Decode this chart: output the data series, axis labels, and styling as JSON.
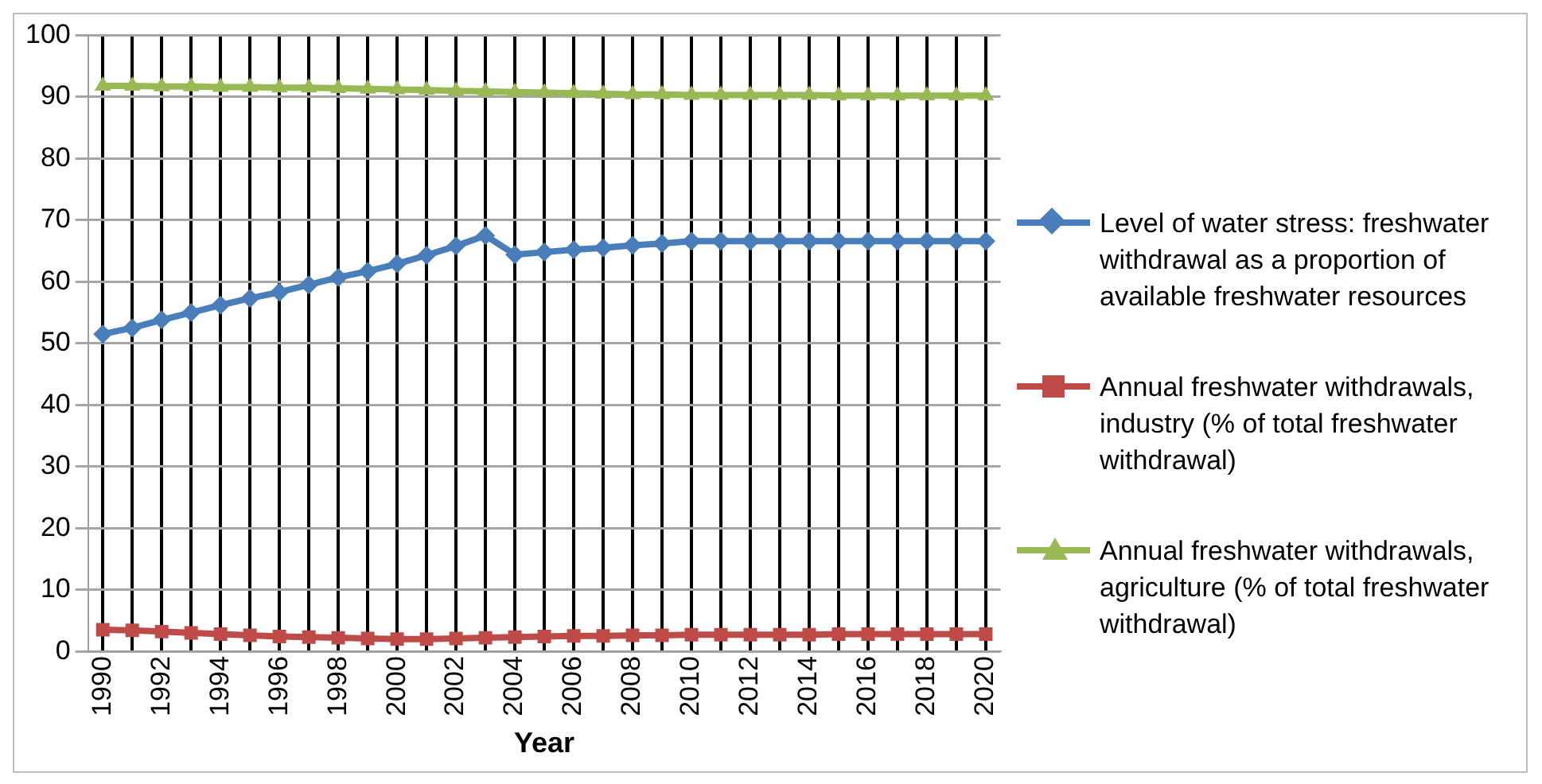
{
  "chart_data": {
    "type": "line",
    "xlabel": "Year",
    "categories": [
      "1990",
      null,
      "1992",
      null,
      "1994",
      null,
      "1996",
      null,
      "1998",
      null,
      "2000",
      null,
      "2002",
      null,
      "2004",
      null,
      "2006",
      null,
      "2008",
      null,
      "2010",
      null,
      "2012",
      null,
      "2014",
      null,
      "2016",
      null,
      "2018",
      null,
      "2020"
    ],
    "ylim": [
      0,
      100
    ],
    "yticks": [
      0,
      10,
      20,
      30,
      40,
      50,
      60,
      70,
      80,
      90,
      100
    ],
    "grid": true,
    "legend": "right",
    "series": [
      {
        "name": "Level of water stress: freshwater withdrawal as a proportion of available freshwater resources",
        "color": "#4a7ebb",
        "marker": "diamond",
        "values": [
          51.5,
          52.5,
          53.8,
          55,
          56.2,
          57.3,
          58.3,
          59.5,
          60.7,
          61.7,
          62.9,
          64.3,
          65.8,
          67.5,
          64.4,
          64.8,
          65.2,
          65.5,
          65.9,
          66.2,
          66.6,
          66.6,
          66.6,
          66.6,
          66.6,
          66.6,
          66.6,
          66.6,
          66.6,
          66.6,
          66.6
        ]
      },
      {
        "name": "Annual freshwater withdrawals, industry (% of total freshwater withdrawal)",
        "color": "#be4b48",
        "marker": "square",
        "values": [
          3.5,
          3.4,
          3.2,
          3.0,
          2.8,
          2.6,
          2.4,
          2.3,
          2.2,
          2.1,
          2.0,
          2.0,
          2.1,
          2.2,
          2.3,
          2.4,
          2.5,
          2.5,
          2.6,
          2.6,
          2.7,
          2.7,
          2.7,
          2.7,
          2.7,
          2.8,
          2.8,
          2.8,
          2.8,
          2.8,
          2.8
        ]
      },
      {
        "name": "Annual freshwater withdrawals, agriculture (% of total freshwater withdrawal)",
        "color": "#98b954",
        "marker": "triangle",
        "values": [
          91.8,
          91.8,
          91.7,
          91.7,
          91.6,
          91.6,
          91.5,
          91.5,
          91.4,
          91.3,
          91.2,
          91.1,
          91.0,
          90.9,
          90.8,
          90.7,
          90.6,
          90.5,
          90.4,
          90.4,
          90.3,
          90.3,
          90.3,
          90.3,
          90.3,
          90.2,
          90.2,
          90.2,
          90.2,
          90.2,
          90.2
        ]
      }
    ]
  }
}
